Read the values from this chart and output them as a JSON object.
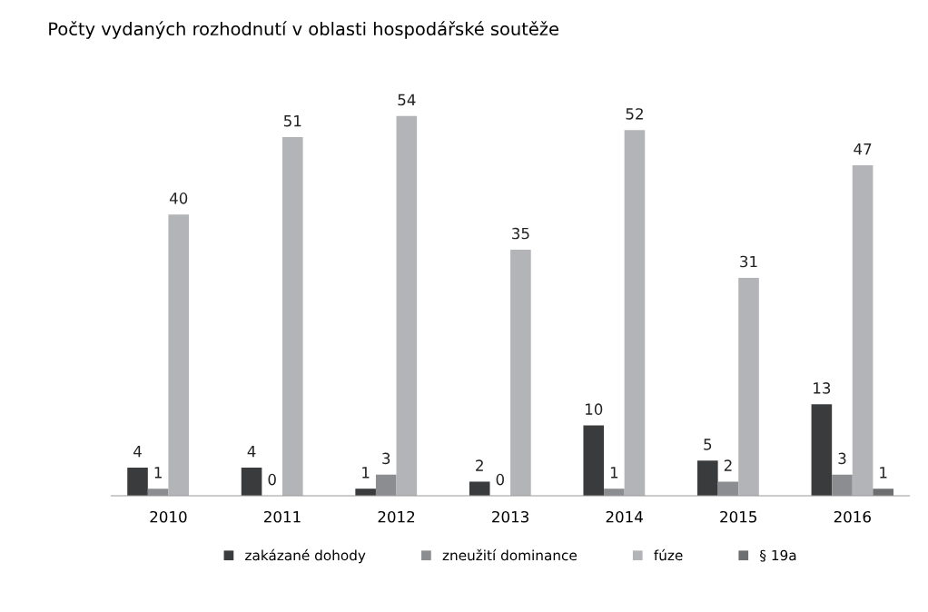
{
  "chart_data": {
    "type": "bar",
    "title": "Počty vydaných rozhodnutí v oblasti hospodářské soutěže",
    "categories": [
      "2010",
      "2011",
      "2012",
      "2013",
      "2014",
      "2015",
      "2016"
    ],
    "series": [
      {
        "name": "zakázané dohody",
        "color": "#3a3b3d",
        "values": [
          4,
          4,
          1,
          2,
          10,
          5,
          13
        ],
        "value_labels": [
          "4",
          "4",
          "1",
          "2",
          "10",
          "5",
          "13"
        ]
      },
      {
        "name": "zneužití dominance",
        "color": "#8c8d90",
        "values": [
          1,
          0,
          3,
          0,
          1,
          2,
          3
        ],
        "value_labels": [
          "1",
          "0",
          "3",
          "0",
          "1",
          "2",
          "3"
        ]
      },
      {
        "name": "fúze",
        "color": "#b3b4b7",
        "values": [
          40,
          51,
          54,
          35,
          52,
          31,
          47
        ],
        "value_labels": [
          "40",
          "51",
          "54",
          "35",
          "52",
          "31",
          "47"
        ]
      },
      {
        "name": "§ 19a",
        "color": "#6d6e70",
        "values": [
          0,
          0,
          0,
          0,
          0,
          0,
          1
        ],
        "value_labels": [
          null,
          null,
          null,
          null,
          null,
          null,
          "1"
        ]
      }
    ],
    "legend": "bottom",
    "grid": false,
    "tick_labels": "x"
  }
}
